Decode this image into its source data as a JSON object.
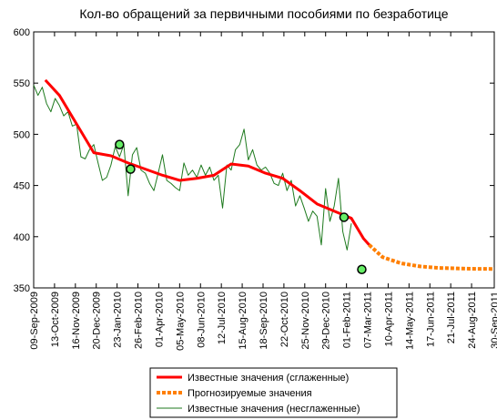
{
  "chart_data": {
    "type": "line",
    "title": "Кол-во обращений за первичными пособиями по безработице",
    "xlim": [
      "2009-09-09",
      "2011-09-30"
    ],
    "xticks": [
      {
        "value": "2009-09-09",
        "label": "09-Sep-2009"
      },
      {
        "value": "2009-10-13",
        "label": "13-Oct-2009"
      },
      {
        "value": "2009-11-16",
        "label": "16-Nov-2009"
      },
      {
        "value": "2009-12-20",
        "label": "20-Dec-2009"
      },
      {
        "value": "2010-01-23",
        "label": "23-Jan-2010"
      },
      {
        "value": "2010-02-26",
        "label": "26-Feb-2010"
      },
      {
        "value": "2010-04-01",
        "label": "01-Apr-2010"
      },
      {
        "value": "2010-05-05",
        "label": "05-May-2010"
      },
      {
        "value": "2010-06-08",
        "label": "08-Jun-2010"
      },
      {
        "value": "2010-07-12",
        "label": "12-Jul-2010"
      },
      {
        "value": "2010-08-15",
        "label": "15-Aug-2010"
      },
      {
        "value": "2010-09-18",
        "label": "18-Sep-2010"
      },
      {
        "value": "2010-10-22",
        "label": "22-Oct-2010"
      },
      {
        "value": "2010-11-25",
        "label": "25-Nov-2010"
      },
      {
        "value": "2010-12-29",
        "label": "29-Dec-2010"
      },
      {
        "value": "2011-02-01",
        "label": "01-Feb-2011"
      },
      {
        "value": "2011-03-07",
        "label": "07-Mar-2011"
      },
      {
        "value": "2011-04-10",
        "label": "10-Apr-2011"
      },
      {
        "value": "2011-05-14",
        "label": "14-May-2011"
      },
      {
        "value": "2011-06-17",
        "label": "17-Jun-2011"
      },
      {
        "value": "2011-07-21",
        "label": "21-Jul-2011"
      },
      {
        "value": "2011-08-24",
        "label": "24-Aug-2011"
      },
      {
        "value": "2011-09-30",
        "label": "30-Sep-2011"
      }
    ],
    "ylim": [
      350,
      600
    ],
    "yticks": [
      350,
      400,
      450,
      500,
      550,
      600
    ],
    "grid": false,
    "legend": "bottom",
    "series": [
      {
        "name": "Известные значения (сглаженные)",
        "color": "#ff0000",
        "style": "solid",
        "x": [
          "2009-09-28",
          "2009-10-21",
          "2009-11-18",
          "2009-12-16",
          "2010-01-13",
          "2010-02-10",
          "2010-03-10",
          "2010-04-07",
          "2010-05-05",
          "2010-06-02",
          "2010-06-30",
          "2010-07-28",
          "2010-08-25",
          "2010-09-22",
          "2010-10-20",
          "2010-11-17",
          "2010-12-15",
          "2011-01-12",
          "2011-02-09",
          "2011-03-01",
          "2011-03-10"
        ],
        "values": [
          553,
          538,
          510,
          482,
          479,
          472,
          466,
          460,
          455,
          457,
          460,
          471,
          469,
          462,
          457,
          445,
          432,
          425,
          418,
          398,
          392
        ]
      },
      {
        "name": "Прогнозируемые значения",
        "color": "#ff7f00",
        "style": "dashed",
        "x": [
          "2011-03-10",
          "2011-04-01",
          "2011-05-01",
          "2011-06-01",
          "2011-07-01",
          "2011-08-01",
          "2011-09-01",
          "2011-09-30"
        ],
        "values": [
          392,
          380,
          374,
          371,
          369.5,
          369,
          368.6,
          368.5
        ]
      },
      {
        "name": "Известные значения (несглаженные)",
        "color": "#1e7a1e",
        "style": "thin",
        "x": [
          "2009-09-09",
          "2009-09-16",
          "2009-09-23",
          "2009-09-30",
          "2009-10-07",
          "2009-10-14",
          "2009-10-21",
          "2009-10-28",
          "2009-11-04",
          "2009-11-11",
          "2009-11-18",
          "2009-11-25",
          "2009-12-02",
          "2009-12-09",
          "2009-12-16",
          "2009-12-23",
          "2009-12-30",
          "2010-01-06",
          "2010-01-13",
          "2010-01-20",
          "2010-01-27",
          "2010-02-03",
          "2010-02-10",
          "2010-02-17",
          "2010-02-24",
          "2010-03-03",
          "2010-03-10",
          "2010-03-17",
          "2010-03-24",
          "2010-03-31",
          "2010-04-07",
          "2010-04-14",
          "2010-04-21",
          "2010-04-28",
          "2010-05-05",
          "2010-05-12",
          "2010-05-19",
          "2010-05-26",
          "2010-06-02",
          "2010-06-09",
          "2010-06-16",
          "2010-06-23",
          "2010-06-30",
          "2010-07-07",
          "2010-07-14",
          "2010-07-21",
          "2010-07-28",
          "2010-08-04",
          "2010-08-11",
          "2010-08-18",
          "2010-08-25",
          "2010-09-01",
          "2010-09-08",
          "2010-09-15",
          "2010-09-22",
          "2010-09-29",
          "2010-10-06",
          "2010-10-13",
          "2010-10-20",
          "2010-10-27",
          "2010-11-03",
          "2010-11-10",
          "2010-11-17",
          "2010-11-24",
          "2010-12-01",
          "2010-12-08",
          "2010-12-15",
          "2010-12-22",
          "2010-12-29",
          "2011-01-05",
          "2011-01-12",
          "2011-01-19",
          "2011-01-26",
          "2011-02-02",
          "2011-02-09"
        ],
        "values": [
          548,
          538,
          546,
          530,
          522,
          535,
          528,
          518,
          522,
          508,
          510,
          478,
          476,
          485,
          490,
          472,
          455,
          458,
          470,
          488,
          478,
          490,
          440,
          480,
          487,
          465,
          462,
          452,
          445,
          462,
          480,
          455,
          452,
          448,
          445,
          472,
          460,
          465,
          458,
          470,
          460,
          468,
          455,
          460,
          428,
          470,
          465,
          485,
          490,
          505,
          475,
          485,
          470,
          465,
          468,
          462,
          452,
          450,
          462,
          445,
          455,
          430,
          440,
          428,
          415,
          425,
          420,
          392,
          447,
          415,
          430,
          457,
          405,
          387,
          413
        ]
      }
    ],
    "markers": {
      "color": "#66ee66",
      "x": [
        "2010-01-27",
        "2010-02-14",
        "2011-01-28",
        "2011-02-26"
      ],
      "values": [
        490,
        466,
        419,
        368
      ]
    }
  }
}
